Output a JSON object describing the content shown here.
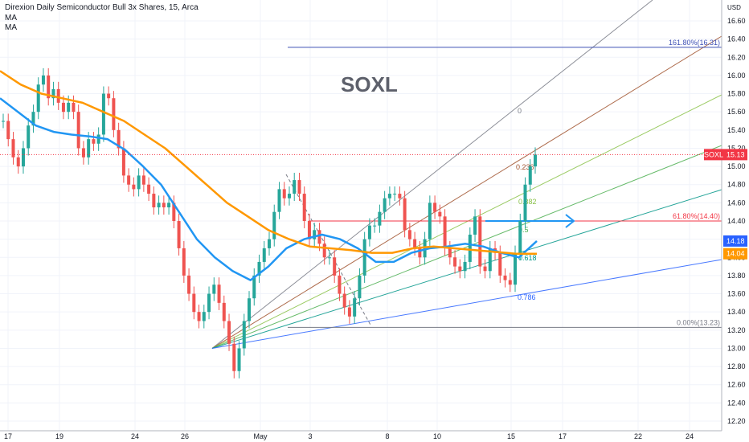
{
  "header": {
    "title": "Direxion Daily Semiconductor Bull 3x Shares, 15, Arca",
    "indicators": [
      "MA",
      "MA"
    ]
  },
  "watermark": "SOXL",
  "axis": {
    "currency": "USD",
    "y_ticks": [
      "16.60",
      "16.40",
      "16.20",
      "16.00",
      "15.80",
      "15.60",
      "15.40",
      "15.20",
      "15.00",
      "14.80",
      "14.60",
      "14.40",
      "14.20",
      "14.00",
      "13.80",
      "13.60",
      "13.40",
      "13.20",
      "13.00",
      "12.80",
      "12.60",
      "12.40",
      "12.20"
    ],
    "x_ticks": [
      "17",
      "19",
      "24",
      "26",
      "May",
      "3",
      "8",
      "10",
      "15",
      "17",
      "22",
      "24"
    ]
  },
  "price_badges": [
    {
      "label": "SOXL",
      "value": "15.13",
      "color": "#f23645"
    },
    {
      "value": "14.18",
      "color": "#2962ff"
    },
    {
      "value": "14.04",
      "color": "#ff9800"
    }
  ],
  "fib_retracement": [
    {
      "label": "161.80%(16.31)",
      "price": 16.31,
      "color": "#3f51b5"
    },
    {
      "label": "61.80%(14.40)",
      "price": 14.4,
      "color": "#f23645"
    },
    {
      "label": "0.00%(13.23)",
      "price": 13.23,
      "color": "#787b86"
    }
  ],
  "fib_fan_labels": [
    {
      "label": "0",
      "color": "#787b86"
    },
    {
      "label": "0.236",
      "color": "#a0522d"
    },
    {
      "label": "0.382",
      "color": "#8bc34a"
    },
    {
      "label": "0.5",
      "color": "#4caf50"
    },
    {
      "label": "0.618",
      "color": "#009688"
    },
    {
      "label": "0.786",
      "color": "#2962ff"
    }
  ],
  "chart_data": {
    "type": "line",
    "title": "Direxion Daily Semiconductor Bull 3x Shares, 15, Arca",
    "ylabel": "USD",
    "ylim": [
      12.15,
      16.75
    ],
    "x_tick_labels": [
      "17",
      "19",
      "24",
      "26",
      "May",
      "3",
      "8",
      "10",
      "15",
      "17",
      "22",
      "24"
    ],
    "series": [
      {
        "name": "SOXL",
        "color": "#26a69a",
        "down_color": "#ef5350",
        "values": [
          15.5,
          15.3,
          15.1,
          15.0,
          15.2,
          15.45,
          15.6,
          15.9,
          16.0,
          15.75,
          15.85,
          15.7,
          15.6,
          15.7,
          15.6,
          15.2,
          15.1,
          15.3,
          15.25,
          15.35,
          15.8,
          15.75,
          15.4,
          15.2,
          14.9,
          14.8,
          14.75,
          14.9,
          14.8,
          14.7,
          14.55,
          14.6,
          14.55,
          14.6,
          14.4,
          14.1,
          13.8,
          13.6,
          13.4,
          13.3,
          13.4,
          13.6,
          13.7,
          13.5,
          13.3,
          13.05,
          12.75,
          13.0,
          13.3,
          13.55,
          13.8,
          13.95,
          14.1,
          14.2,
          14.5,
          14.75,
          14.65,
          14.7,
          14.85,
          14.7,
          14.4,
          14.2,
          14.3,
          14.15,
          14.0,
          14.0,
          13.8,
          13.6,
          13.45,
          13.35,
          13.55,
          13.8,
          14.2,
          14.35,
          14.35,
          14.5,
          14.65,
          14.7,
          14.7,
          14.65,
          14.3,
          14.2,
          14.1,
          14.0,
          14.2,
          14.6,
          14.5,
          14.45,
          14.1,
          14.0,
          13.9,
          13.85,
          13.95,
          14.25,
          14.45,
          13.9,
          13.85,
          14.1,
          14.05,
          13.8,
          13.75,
          13.7,
          14.05,
          14.4,
          14.8,
          15.0,
          15.13
        ]
      },
      {
        "name": "MA",
        "color": "#2196f3",
        "values": [
          15.75,
          15.6,
          15.45,
          15.38,
          15.35,
          15.33,
          15.3,
          15.18,
          15.0,
          14.8,
          14.5,
          14.2,
          14.0,
          13.85,
          13.75,
          13.9,
          14.1,
          14.2,
          14.25,
          14.2,
          14.1,
          13.95,
          13.95,
          14.05,
          14.1,
          14.12,
          14.15,
          14.12,
          14.05,
          14.0,
          14.18
        ]
      },
      {
        "name": "MA",
        "color": "#ff9800",
        "values": [
          16.05,
          15.9,
          15.8,
          15.75,
          15.7,
          15.6,
          15.5,
          15.35,
          15.2,
          15.0,
          14.8,
          14.6,
          14.45,
          14.3,
          14.2,
          14.12,
          14.1,
          14.08,
          14.05,
          14.05,
          14.1,
          14.12,
          14.1,
          14.08,
          14.06,
          14.04,
          14.04
        ]
      }
    ]
  }
}
